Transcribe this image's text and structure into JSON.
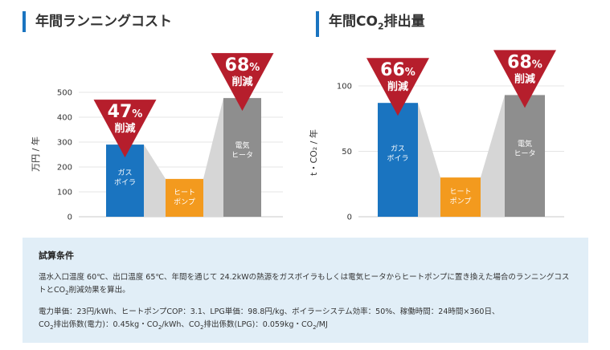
{
  "titles": {
    "left": "年間ランニングコスト",
    "right_prefix": "年間CO",
    "right_sub": "2",
    "right_suffix": "排出量"
  },
  "colors": {
    "gas": "#1a74c0",
    "heatpump": "#f39a1e",
    "electric": "#8e8e8e",
    "triangle": "#b61e2c",
    "connector": "#d6d6d6",
    "title_bar": "#1a74c0"
  },
  "chart_data": [
    {
      "type": "bar",
      "title": "年間ランニングコスト",
      "ylabel": "万円 / 年",
      "ylim": [
        0,
        500
      ],
      "yticks": [
        0,
        100,
        200,
        300,
        400,
        500
      ],
      "categories": [
        {
          "line1": "ガス",
          "line2": "ボイラ",
          "value": 290,
          "color": "#1a74c0"
        },
        {
          "line1": "ヒート",
          "line2": "ポンプ",
          "value": 152,
          "color": "#f39a1e"
        },
        {
          "line1": "電気",
          "line2": "ヒータ",
          "value": 477,
          "color": "#8e8e8e"
        }
      ],
      "reductions": [
        {
          "target": 0,
          "percent": "47",
          "unit": "%",
          "label": "削減"
        },
        {
          "target": 2,
          "percent": "68",
          "unit": "%",
          "label": "削減"
        }
      ]
    },
    {
      "type": "bar",
      "title": "年間CO2排出量",
      "ylabel": "t・CO₂ / 年",
      "ylim": [
        0,
        100
      ],
      "yticks": [
        0,
        50,
        100
      ],
      "categories": [
        {
          "line1": "ガス",
          "line2": "ボイラ",
          "value": 87,
          "color": "#1a74c0"
        },
        {
          "line1": "ヒート",
          "line2": "ポンプ",
          "value": 30,
          "color": "#f39a1e"
        },
        {
          "line1": "電気",
          "line2": "ヒータ",
          "value": 93,
          "color": "#8e8e8e"
        }
      ],
      "reductions": [
        {
          "target": 0,
          "percent": "66",
          "unit": "%",
          "label": "削減"
        },
        {
          "target": 2,
          "percent": "68",
          "unit": "%",
          "label": "削減"
        }
      ]
    }
  ],
  "conditions": {
    "title": "試算条件",
    "para1": "温水入口温度 60℃、出口温度 65℃、年間を通じて 24.2kWの熱源をガスボイラもしくは電気ヒータからヒートポンプに置き換えた場合のランニングコストとCO",
    "para1_sub": "2",
    "para1_end": "削減効果を算出。",
    "para2_line1": "電力単価：23円/kWh、ヒートポンプCOP：3.1、LPG単価：98.8円/kg、ボイラーシステム効率：50%、稼働時間：24時間×360日、",
    "para2_a": "CO",
    "para2_sub1": "2",
    "para2_b": "排出係数(電力)：0.45kg・CO",
    "para2_sub2": "2",
    "para2_c": "/kWh、CO",
    "para2_sub3": "2",
    "para2_d": "排出係数(LPG)：0.059kg・CO",
    "para2_sub4": "2",
    "para2_e": "/MJ"
  }
}
